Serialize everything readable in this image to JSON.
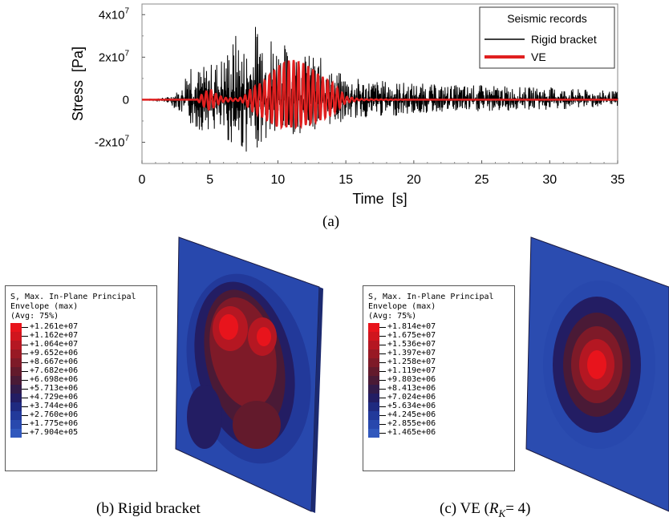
{
  "chart_data": {
    "type": "line",
    "title": "",
    "xlabel": "Time  [s]",
    "ylabel": "Stress  [Pa]",
    "xlim": [
      0,
      35
    ],
    "ylim": [
      -30000000,
      45000000
    ],
    "x_ticks": [
      "0",
      "5",
      "10",
      "15",
      "20",
      "25",
      "30",
      "35"
    ],
    "y_ticks": [
      {
        "base": "4x10",
        "exp": "7",
        "value": 40000000
      },
      {
        "base": "2x10",
        "exp": "7",
        "value": 20000000
      },
      {
        "base": "0",
        "exp": "",
        "value": 0
      },
      {
        "base": "-2x10",
        "exp": "7",
        "value": -20000000
      }
    ],
    "legend": {
      "title": "Seismic records",
      "placement": "top-right"
    },
    "series": [
      {
        "name": "Rigid bracket",
        "color": "#000000",
        "envelope_time": [
          0,
          1,
          2,
          3,
          3.5,
          4,
          5,
          6,
          7,
          7.5,
          8,
          8.7,
          9,
          10,
          11,
          12,
          13,
          14,
          15,
          16,
          18,
          20,
          22,
          25,
          28,
          30,
          32,
          35
        ],
        "envelope_amp_max": [
          0,
          400000,
          1500000,
          6000000,
          27000000,
          15000000,
          17000000,
          22000000,
          33000000,
          26000000,
          28000000,
          45000000,
          36000000,
          30000000,
          24000000,
          22000000,
          21000000,
          14000000,
          12000000,
          10000000,
          9000000,
          8000000,
          7000000,
          7000000,
          6000000,
          6000000,
          5000000,
          4000000
        ],
        "envelope_amp_min": [
          0,
          -400000,
          -1500000,
          -8000000,
          -12000000,
          -15000000,
          -14000000,
          -20000000,
          -22000000,
          -26000000,
          -24000000,
          -22000000,
          -20000000,
          -18000000,
          -17000000,
          -15000000,
          -14000000,
          -12000000,
          -10000000,
          -9000000,
          -8000000,
          -7000000,
          -6000000,
          -6000000,
          -5000000,
          -5000000,
          -4000000,
          -3000000
        ]
      },
      {
        "name": "VE",
        "color": "#e02020",
        "envelope_time": [
          0,
          4,
          4.5,
          5,
          5.5,
          6,
          7,
          7.5,
          8,
          9,
          10,
          11,
          12,
          13,
          14,
          15,
          16,
          20,
          35
        ],
        "envelope_amp_max": [
          0,
          0,
          3000000,
          5000000,
          2500000,
          1000000,
          500000,
          1500000,
          5000000,
          9000000,
          16000000,
          19000000,
          17000000,
          12000000,
          8000000,
          1500000,
          300000,
          0,
          0
        ],
        "envelope_amp_min": [
          0,
          0,
          -3000000,
          -5000000,
          -2500000,
          -1000000,
          -500000,
          -1500000,
          -5000000,
          -9000000,
          -13000000,
          -13000000,
          -12000000,
          -10000000,
          -7000000,
          -1500000,
          -300000,
          0,
          0
        ]
      }
    ],
    "caption": "(a)"
  },
  "panels": [
    {
      "id": "b",
      "caption": "(b) Rigid bracket",
      "legend_header": [
        "S, Max. In-Plane Principal",
        "Envelope (max)",
        "(Avg: 75%)"
      ],
      "scale_values": [
        "+1.261e+07",
        "+1.162e+07",
        "+1.064e+07",
        "+9.652e+06",
        "+8.667e+06",
        "+7.682e+06",
        "+6.698e+06",
        "+5.713e+06",
        "+4.729e+06",
        "+3.744e+06",
        "+2.760e+06",
        "+1.775e+06",
        "+7.904e+05"
      ]
    },
    {
      "id": "c",
      "caption_prefix": "(c) VE (",
      "caption_var": "R",
      "caption_sub": "K",
      "caption_suffix": "= 4)",
      "legend_header": [
        "S, Max. In-Plane Principal",
        "Envelope (max)",
        "(Avg: 75%)"
      ],
      "scale_values": [
        "+1.814e+07",
        "+1.675e+07",
        "+1.536e+07",
        "+1.397e+07",
        "+1.258e+07",
        "+1.119e+07",
        "+9.803e+06",
        "+8.413e+06",
        "+7.024e+06",
        "+5.634e+06",
        "+4.245e+06",
        "+2.855e+06",
        "+1.465e+06"
      ]
    }
  ],
  "scale_colors": [
    "#e8141c",
    "#d0151e",
    "#b51722",
    "#981924",
    "#7e1a28",
    "#631a2c",
    "#4a1a36",
    "#321b4a",
    "#231d63",
    "#1f2a80",
    "#22399a",
    "#2848ad",
    "#3158bd"
  ]
}
